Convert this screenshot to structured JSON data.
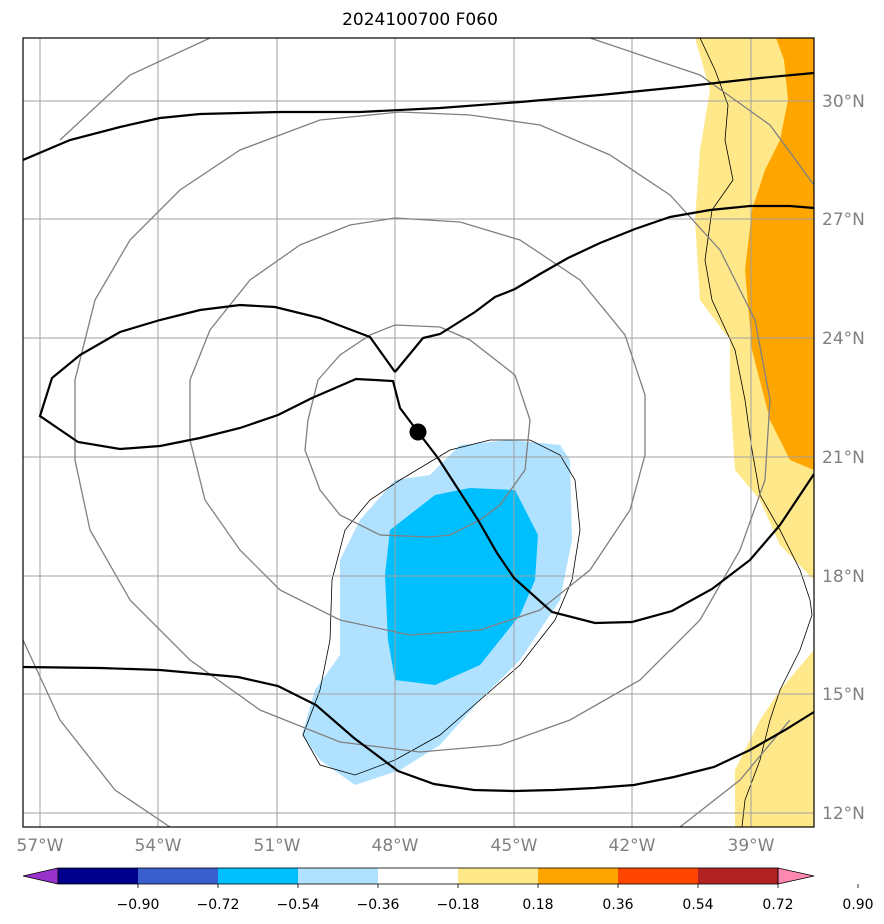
{
  "title": "2024100700 F060",
  "lat_ticks": [
    "30°N",
    "27°N",
    "24°N",
    "21°N",
    "18°N",
    "15°N",
    "12°N"
  ],
  "lon_ticks": [
    "57°W",
    "54°W",
    "51°W",
    "48°W",
    "45°W",
    "42°W",
    "39°W"
  ],
  "colorbar": {
    "labels": [
      "−0.90",
      "−0.72",
      "−0.54",
      "−0.36",
      "−0.18",
      "0.18",
      "0.36",
      "0.54",
      "0.72",
      "0.90"
    ],
    "colors": [
      "#9932cc",
      "#00008b",
      "#3a5fcd",
      "#00bfff",
      "#b0e2ff",
      "#ffffff",
      "#ffe88a",
      "#ffa500",
      "#ff4500",
      "#b22222",
      "#ff88b0"
    ]
  },
  "map_colors": {
    "light_blue": "#b0e2ff",
    "medium_blue": "#00bfff",
    "light_yellow": "#ffe88a",
    "orange": "#ffa500",
    "gridline": "#a0a0a0",
    "range_ring": "#808080",
    "contour": "#000000"
  },
  "storm_center": {
    "lon": -47.6,
    "lat": 21.6
  }
}
